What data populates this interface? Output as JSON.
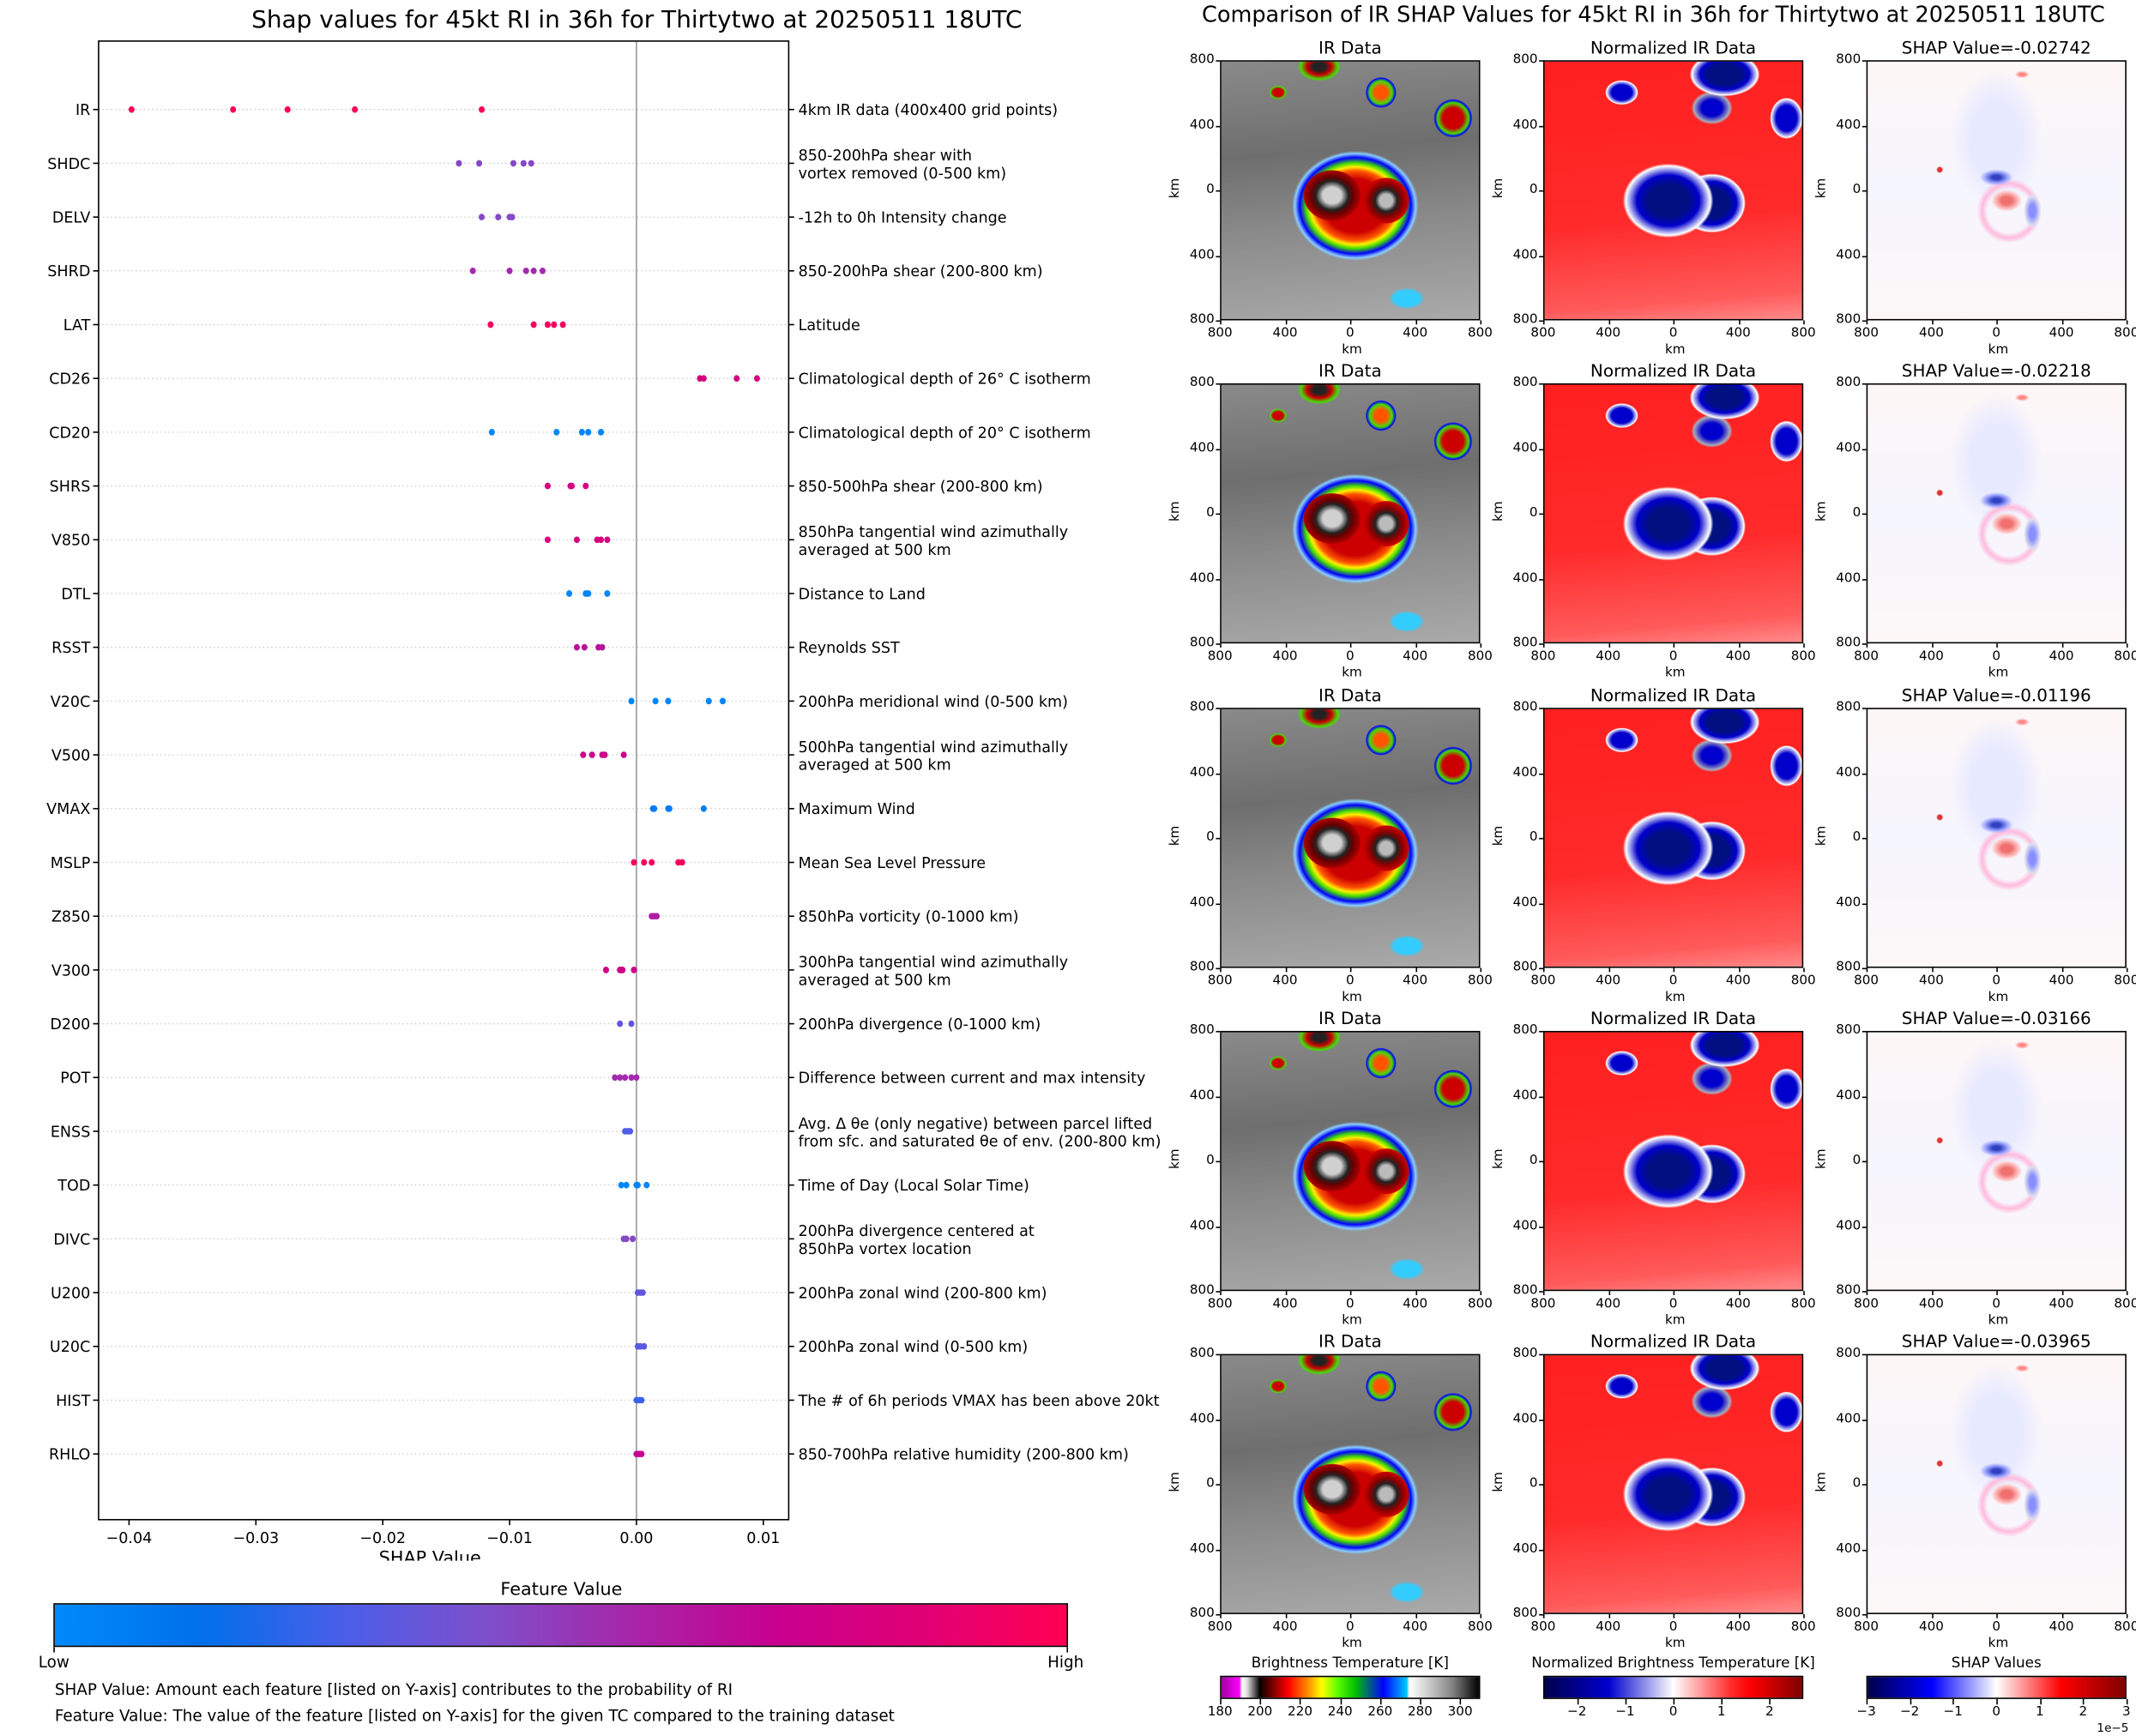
{
  "left_title": "Shap values for 45kt RI in 36h for Thirtytwo at 20250511 18UTC",
  "right_title": "Comparison of IR SHAP Values for 45kt RI in 36h for Thirtytwo at 20250511 18UTC",
  "colorbar": {
    "title": "Feature Value",
    "low_label": "Low",
    "high_label": "High",
    "colors": [
      "#008afb",
      "#0070eb",
      "#4a5ee8",
      "#7f4fca",
      "#a825a8",
      "#c8008f",
      "#e00075",
      "#ff0052"
    ]
  },
  "notes": [
    "SHAP Value: Amount each feature [listed on Y-axis] contributes to the probability of RI",
    "Feature Value: The value of the feature [listed on Y-axis] for the given TC compared to the training dataset"
  ],
  "chart_data": {
    "type": "scatter",
    "title": "Shap values for 45kt RI in 36h for Thirtytwo at 20250511 18UTC",
    "xlabel": "SHAP Value",
    "ylabel": "",
    "xlim": [
      -0.0424,
      0.012
    ],
    "xticks": [
      -0.04,
      -0.03,
      -0.02,
      -0.01,
      0.0,
      0.01
    ],
    "xtick_labels": [
      "−0.04",
      "−0.03",
      "−0.02",
      "−0.01",
      "0.00",
      "0.01"
    ],
    "grid": "horizontal dotted per feature",
    "zero_line": 0.0,
    "legend": "colorbar below plot (Low to High feature value)",
    "features": [
      {
        "name": "IR",
        "description": "4km IR data (400x400 grid points)",
        "feature_value": 0.98,
        "shap": [
          -0.0398,
          -0.0318,
          -0.0275,
          -0.0222,
          -0.0122
        ]
      },
      {
        "name": "SHDC",
        "description": "850-200hPa shear with\nvortex removed (0-500 km)",
        "feature_value": 0.45,
        "shap": [
          -0.014,
          -0.0124,
          -0.0097,
          -0.0089,
          -0.0083
        ]
      },
      {
        "name": "DELV",
        "description": "-12h to 0h Intensity change",
        "feature_value": 0.45,
        "shap": [
          -0.0122,
          -0.0109,
          -0.01,
          -0.0098
        ]
      },
      {
        "name": "SHRD",
        "description": "850-200hPa shear (200-800 km)",
        "feature_value": 0.55,
        "shap": [
          -0.0129,
          -0.01,
          -0.0087,
          -0.0081,
          -0.0074
        ]
      },
      {
        "name": "LAT",
        "description": "Latitude",
        "feature_value": 0.95,
        "shap": [
          -0.0115,
          -0.0081,
          -0.007,
          -0.0065,
          -0.0058
        ]
      },
      {
        "name": "CD26",
        "description": "Climatological depth of 26° C isotherm",
        "feature_value": 0.8,
        "shap": [
          0.005,
          0.0053,
          0.0079,
          0.0095
        ]
      },
      {
        "name": "CD20",
        "description": "Climatological depth of 20° C isotherm",
        "feature_value": 0.02,
        "shap": [
          -0.0114,
          -0.0063,
          -0.0043,
          -0.0038,
          -0.0028
        ]
      },
      {
        "name": "SHRS",
        "description": "850-500hPa shear (200-800 km)",
        "feature_value": 0.8,
        "shap": [
          -0.007,
          -0.0052,
          -0.0051,
          -0.004
        ]
      },
      {
        "name": "V850",
        "description": "850hPa tangential wind azimuthally\naveraged at 500 km",
        "feature_value": 0.8,
        "shap": [
          -0.007,
          -0.0047,
          -0.0031,
          -0.0028,
          -0.0023
        ]
      },
      {
        "name": "DTL",
        "description": "Distance to Land",
        "feature_value": 0.02,
        "shap": [
          -0.0053,
          -0.004,
          -0.0038,
          -0.0023
        ]
      },
      {
        "name": "RSST",
        "description": "Reynolds SST",
        "feature_value": 0.65,
        "shap": [
          -0.0047,
          -0.0041,
          -0.003,
          -0.0027
        ]
      },
      {
        "name": "V20C",
        "description": "200hPa meridional wind (0-500 km)",
        "feature_value": 0.02,
        "shap": [
          -0.0004,
          0.0015,
          0.0025,
          0.0057,
          0.0068
        ]
      },
      {
        "name": "V500",
        "description": "500hPa tangential wind azimuthally\naveraged at 500 km",
        "feature_value": 0.75,
        "shap": [
          -0.0042,
          -0.0035,
          -0.0027,
          -0.0025,
          -0.001
        ]
      },
      {
        "name": "VMAX",
        "description": "Maximum Wind",
        "feature_value": 0.08,
        "shap": [
          0.0013,
          0.0014,
          0.0025,
          0.0026,
          0.0053
        ]
      },
      {
        "name": "MSLP",
        "description": "Mean Sea Level Pressure",
        "feature_value": 0.95,
        "shap": [
          -0.0002,
          0.0006,
          0.0012,
          0.0033,
          0.0036
        ]
      },
      {
        "name": "Z850",
        "description": "850hPa vorticity (0-1000 km)",
        "feature_value": 0.6,
        "shap": [
          0.0012,
          0.0014,
          0.0016
        ]
      },
      {
        "name": "V300",
        "description": "300hPa tangential wind azimuthally\naveraged at 500 km",
        "feature_value": 0.75,
        "shap": [
          -0.0024,
          -0.0013,
          -0.0012,
          -0.0011,
          -0.0002
        ]
      },
      {
        "name": "D200",
        "description": "200hPa divergence (0-1000 km)",
        "feature_value": 0.35,
        "shap": [
          -0.0013,
          -0.0004
        ]
      },
      {
        "name": "POT",
        "description": "Difference between current and max intensity",
        "feature_value": 0.55,
        "shap": [
          -0.0017,
          -0.0013,
          -0.0009,
          -0.0004,
          0.0
        ]
      },
      {
        "name": "ENSS",
        "description": "Avg. Δ θe (only negative) between parcel lifted\nfrom sfc. and saturated θe of env. (200-800 km)",
        "feature_value": 0.3,
        "shap": [
          -0.0009,
          -0.0007,
          -0.0005
        ]
      },
      {
        "name": "TOD",
        "description": "Time of Day (Local Solar Time)",
        "feature_value": 0.02,
        "shap": [
          -0.0012,
          -0.0008,
          0.0,
          0.0001,
          0.0008
        ]
      },
      {
        "name": "DIVC",
        "description": "200hPa divergence centered at\n850hPa vortex location",
        "feature_value": 0.45,
        "shap": [
          -0.001,
          -0.0008,
          -0.0003
        ]
      },
      {
        "name": "U200",
        "description": "200hPa zonal wind (200-800 km)",
        "feature_value": 0.35,
        "shap": [
          0.0001,
          0.0003,
          0.0005
        ]
      },
      {
        "name": "U20C",
        "description": "200hPa zonal wind (0-500 km)",
        "feature_value": 0.32,
        "shap": [
          0.0001,
          0.0003,
          0.0006
        ]
      },
      {
        "name": "HIST",
        "description": "The # of 6h periods VMAX has been above 20kt",
        "feature_value": 0.25,
        "shap": [
          0.0,
          0.0002,
          0.0004
        ]
      },
      {
        "name": "RHLO",
        "description": "850-700hPa relative humidity (200-800 km)",
        "feature_value": 0.7,
        "shap": [
          0.0,
          0.0002,
          0.0004
        ]
      }
    ]
  },
  "ir_comparison": {
    "column_titles": [
      "IR Data",
      "Normalized IR Data"
    ],
    "shap_title_prefix": "SHAP Value=",
    "axis_label": "km",
    "tick_labels": [
      "800",
      "400",
      "0",
      "400",
      "800"
    ],
    "rows": [
      {
        "shap_value": "-0.02742"
      },
      {
        "shap_value": "-0.02218"
      },
      {
        "shap_value": "-0.01196"
      },
      {
        "shap_value": "-0.03166"
      },
      {
        "shap_value": "-0.03965"
      }
    ],
    "colorbars": [
      {
        "title": "Brightness Temperature [K]",
        "ticks": [
          "180",
          "200",
          "220",
          "240",
          "260",
          "280",
          "300"
        ],
        "range": [
          180,
          310
        ]
      },
      {
        "title": "Normalized Brightness Temperature [K]",
        "ticks": [
          "−2",
          "−1",
          "0",
          "1",
          "2"
        ],
        "range": [
          -2.7,
          2.7
        ]
      },
      {
        "title": "SHAP Values",
        "ticks": [
          "−3",
          "−2",
          "−1",
          "0",
          "1",
          "2",
          "3"
        ],
        "range": [
          -3,
          3
        ],
        "offset_label": "1e−5"
      }
    ]
  }
}
